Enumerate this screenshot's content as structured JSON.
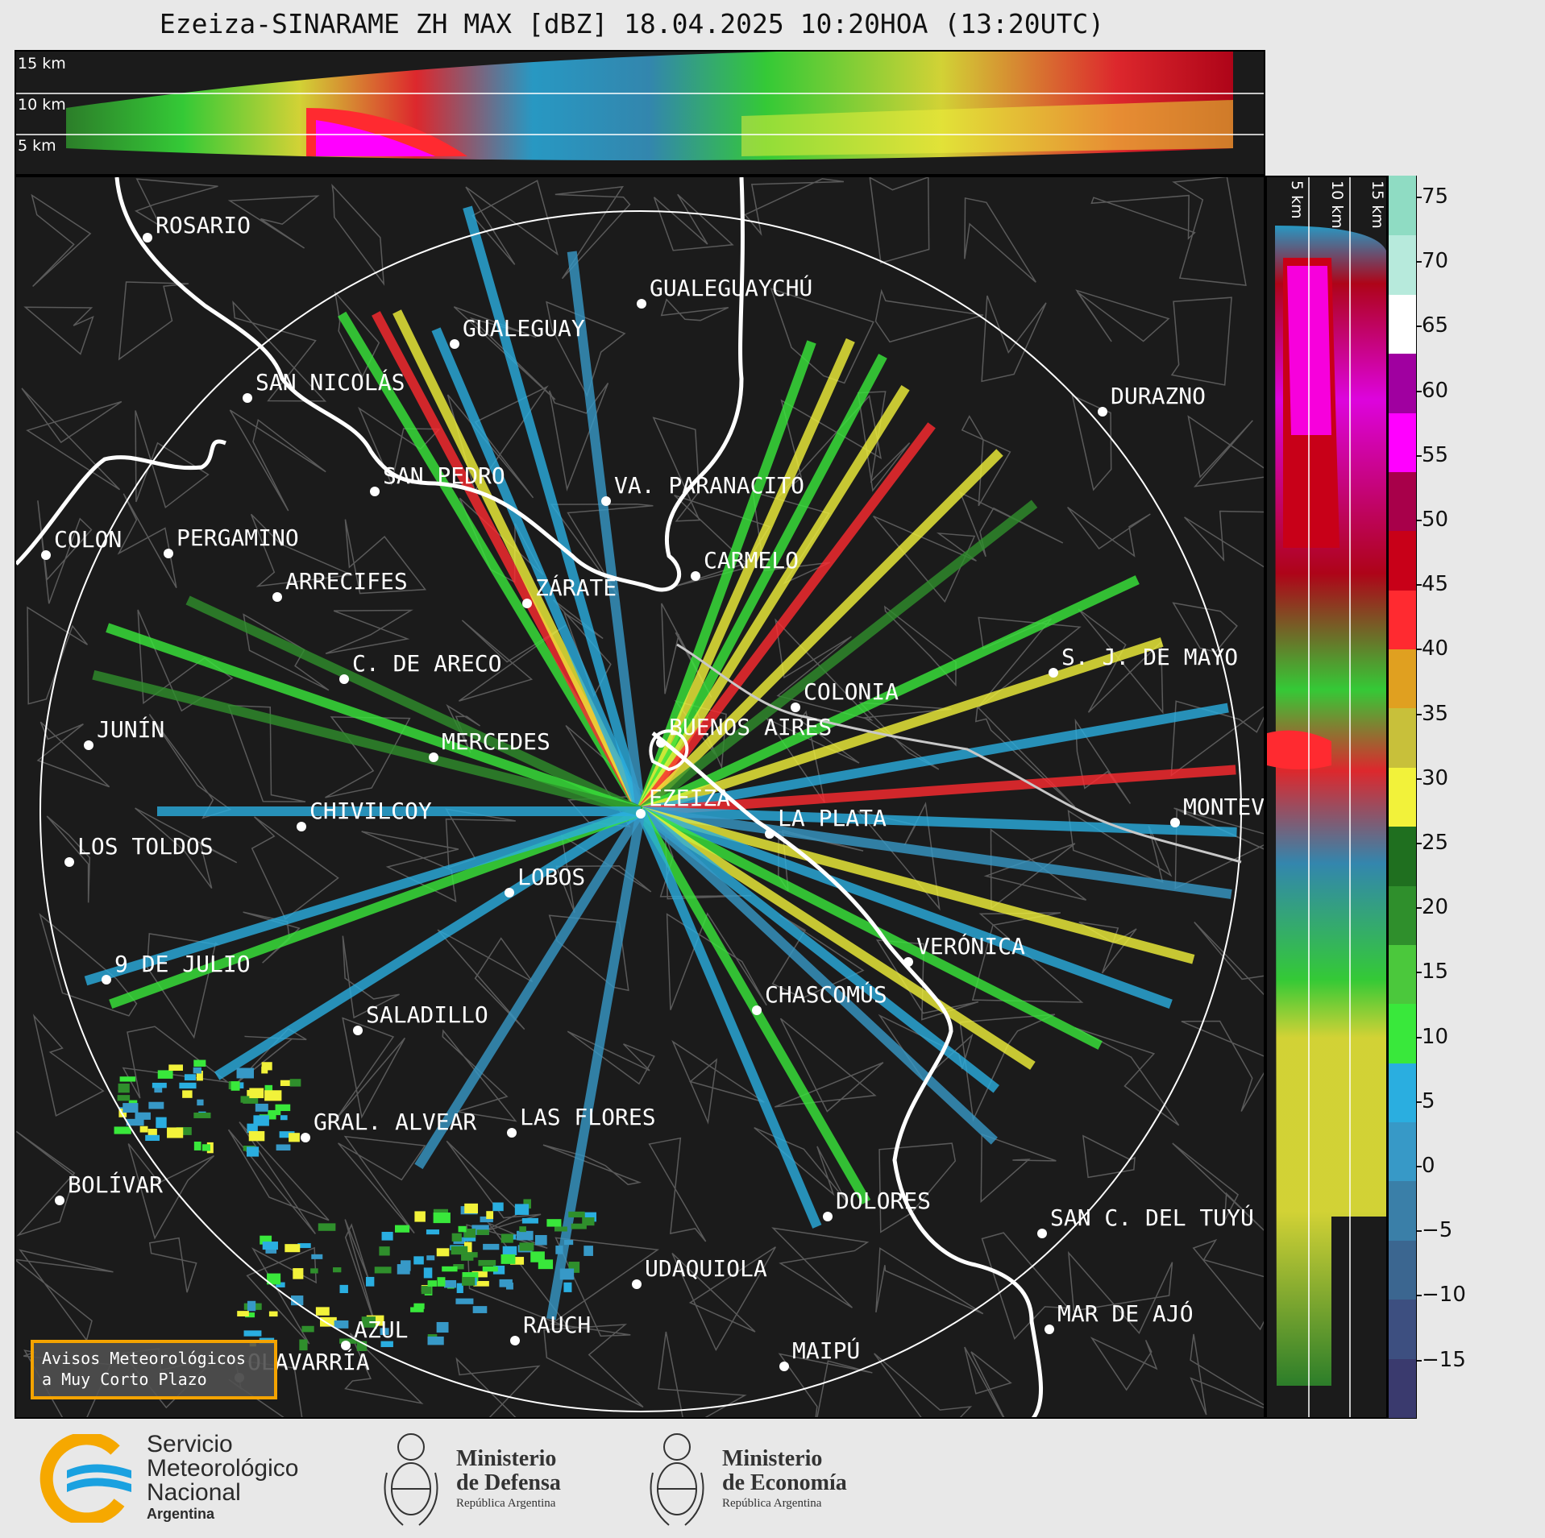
{
  "title": "Ezeiza-SINARAME ZH MAX [dBZ] 18.04.2025 10:20HOA (13:20UTC)",
  "top_panel": {
    "altitudes": [
      "15 km",
      "10 km",
      "5 km"
    ]
  },
  "right_panel": {
    "altitudes": [
      "5 km",
      "10 km",
      "15 km"
    ]
  },
  "colorbar": {
    "ticks": [
      "75",
      "70",
      "65",
      "60",
      "55",
      "50",
      "45",
      "40",
      "35",
      "30",
      "25",
      "20",
      "15",
      "10",
      "5",
      "0",
      "−5",
      "−10",
      "−15"
    ],
    "colors": [
      "#3a3a6e",
      "#3d4f80",
      "#3b6690",
      "#3a7fa8",
      "#3799c7",
      "#2aaee0",
      "#39e83b",
      "#4bc83c",
      "#2f8f2c",
      "#1f6f1f",
      "#f2f23a",
      "#c8c03a",
      "#e0a020",
      "#ff2a30",
      "#c80018",
      "#a8004a",
      "#ff00ff",
      "#a000a0",
      "#ffffff",
      "#b7eadc",
      "#8fdcc3"
    ]
  },
  "cities": [
    {
      "name": "ROSARIO"
    },
    {
      "name": "GUALEGUAYCHÚ"
    },
    {
      "name": "GUALEGUAY"
    },
    {
      "name": "SAN NICOLÁS"
    },
    {
      "name": "DURAZNO"
    },
    {
      "name": "SAN PEDRO"
    },
    {
      "name": "VA. PARANACITO"
    },
    {
      "name": "COLON"
    },
    {
      "name": "PERGAMINO"
    },
    {
      "name": "CARMELO"
    },
    {
      "name": "ARRECIFES"
    },
    {
      "name": "ZÁRATE"
    },
    {
      "name": "S. J. DE MAYO"
    },
    {
      "name": "C. DE ARECO"
    },
    {
      "name": "COLONIA"
    },
    {
      "name": "JUNÍN"
    },
    {
      "name": "BUENOS AIRES"
    },
    {
      "name": "MERCEDES"
    },
    {
      "name": "EZEIZA"
    },
    {
      "name": "MONTEVIDEO"
    },
    {
      "name": "CHIVILCOY"
    },
    {
      "name": "LA PLATA"
    },
    {
      "name": "LOS TOLDOS"
    },
    {
      "name": "LOBOS"
    },
    {
      "name": "VERÓNICA"
    },
    {
      "name": "9 DE JULIO"
    },
    {
      "name": "CHASCOMÚS"
    },
    {
      "name": "SALADILLO"
    },
    {
      "name": "GRAL. ALVEAR"
    },
    {
      "name": "LAS FLORES"
    },
    {
      "name": "BOLÍVAR"
    },
    {
      "name": "DOLORES"
    },
    {
      "name": "SAN C. DEL TUYÚ"
    },
    {
      "name": "UDAQUIOLA"
    },
    {
      "name": "MAR DE AJÓ"
    },
    {
      "name": "RAUCH"
    },
    {
      "name": "AZUL"
    },
    {
      "name": "OLAVARRÍA"
    },
    {
      "name": "MAIPÚ"
    }
  ],
  "notice": {
    "line1": "Avisos Meteorológicos",
    "line2": "a Muy Corto Plazo"
  },
  "logos": {
    "smn": {
      "line1": "Servicio",
      "line2": "Meteorológico",
      "line3": "Nacional",
      "line4": "Argentina",
      "color_blue": "#1aa1e0",
      "color_orange": "#f6a800"
    },
    "defensa": {
      "line1": "Ministerio",
      "line2": "de Defensa",
      "line3": "República Argentina"
    },
    "economia": {
      "line1": "Ministerio",
      "line2": "de Economía",
      "line3": "República Argentina"
    }
  }
}
